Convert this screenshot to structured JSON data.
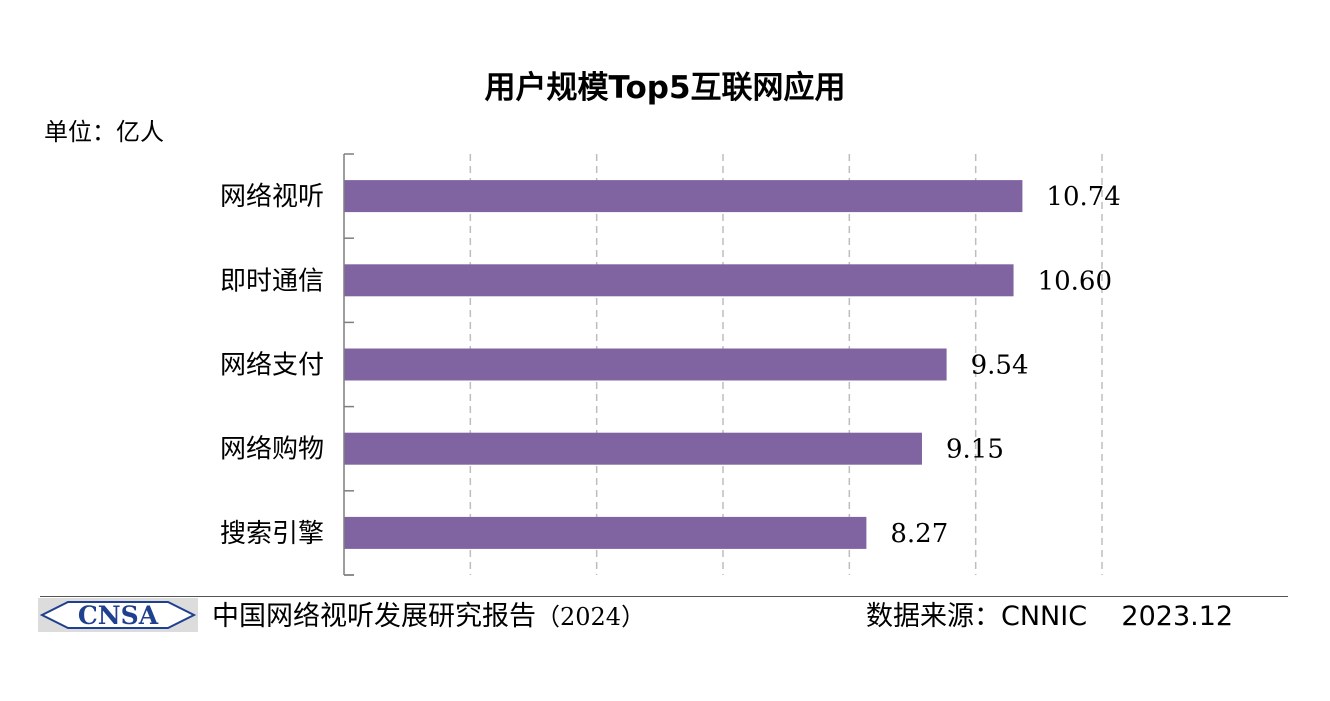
{
  "chart_data": {
    "type": "bar",
    "orientation": "horizontal",
    "title": "用户规模Top5互联网应用",
    "unit_label": "单位：亿人",
    "categories": [
      "网络视听",
      "即时通信",
      "网络支付",
      "网络购物",
      "搜索引擎"
    ],
    "values": [
      10.74,
      10.6,
      9.54,
      9.15,
      8.27
    ],
    "value_labels": [
      "10.74",
      "10.60",
      "9.54",
      "9.15",
      "8.27"
    ],
    "xlim": [
      0,
      12
    ],
    "gridlines": "vertical dashed",
    "bar_color": "#8064a2"
  },
  "footer": {
    "logo_text": "CNSA",
    "report_title": "中国网络视听发展研究报告",
    "report_year": "（2024）",
    "source": "数据来源：CNNIC",
    "date": "2023.12"
  }
}
